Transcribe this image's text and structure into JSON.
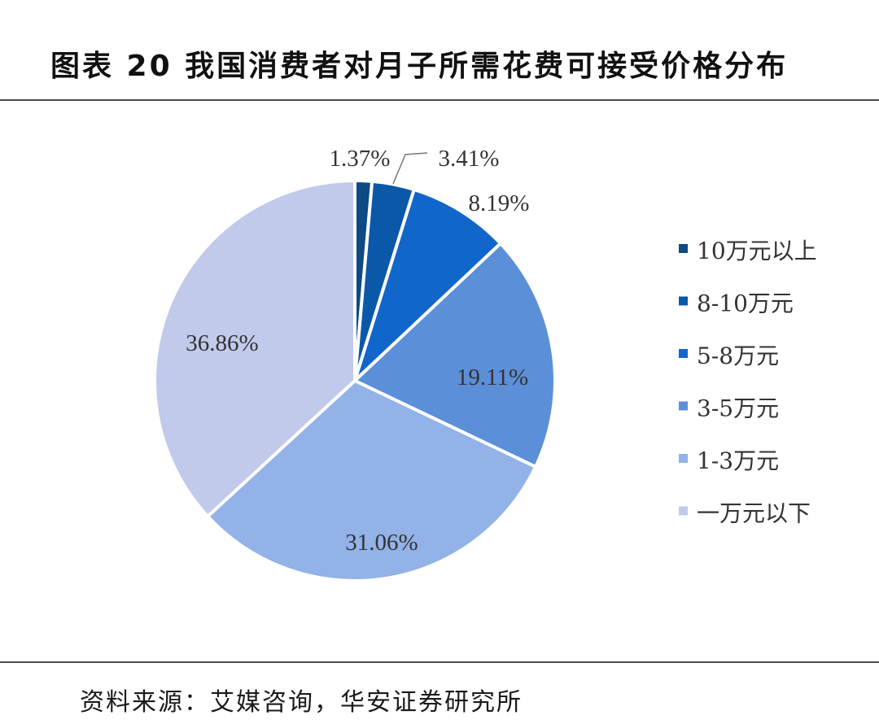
{
  "header": {
    "title": "图表 20 我国消费者对月子所需花费可接受价格分布"
  },
  "footer": {
    "source": "资料来源：艾媒咨询，华安证券研究所"
  },
  "chart_data": {
    "type": "pie",
    "title": "图表 20 我国消费者对月子所需花费可接受价格分布",
    "categories": [
      "10万元以上",
      "8-10万元",
      "5-8万元",
      "3-5万元",
      "1-3万元",
      "一万元以下"
    ],
    "values": [
      1.37,
      3.41,
      8.19,
      19.11,
      31.06,
      36.86
    ],
    "data_labels": [
      "1.37%",
      "3.41%",
      "8.19%",
      "19.11%",
      "31.06%",
      "36.86%"
    ],
    "colors": [
      "#0e4a83",
      "#0b58a8",
      "#1166c9",
      "#5b8fd8",
      "#92b2e8",
      "#c1caea"
    ],
    "legend_position": "right",
    "start_angle": "12 o'clock, clockwise"
  }
}
